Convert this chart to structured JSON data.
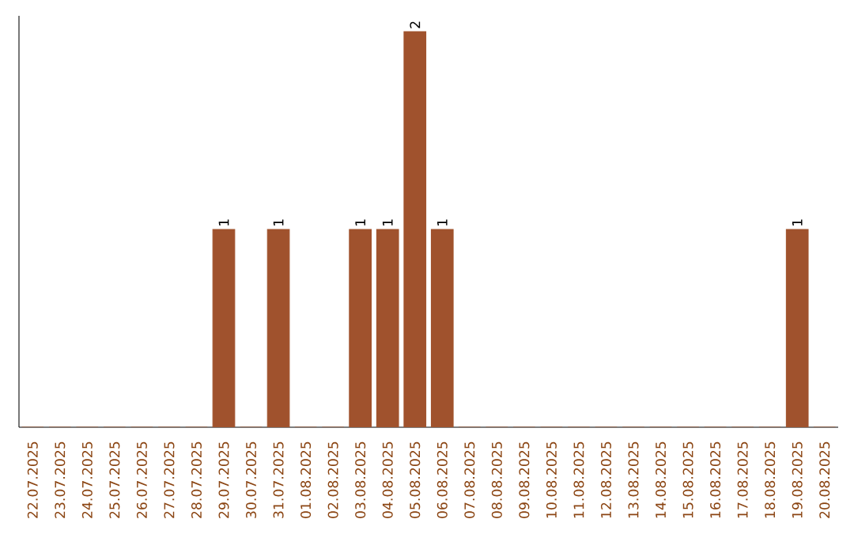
{
  "chart_data": {
    "type": "bar",
    "categories": [
      "22.07.2025",
      "23.07.2025",
      "24.07.2025",
      "25.07.2025",
      "26.07.2025",
      "27.07.2025",
      "28.07.2025",
      "29.07.2025",
      "30.07.2025",
      "31.07.2025",
      "01.08.2025",
      "02.08.2025",
      "03.08.2025",
      "04.08.2025",
      "05.08.2025",
      "06.08.2025",
      "07.08.2025",
      "08.08.2025",
      "09.08.2025",
      "10.08.2025",
      "11.08.2025",
      "12.08.2025",
      "13.08.2025",
      "14.08.2025",
      "15.08.2025",
      "16.08.2025",
      "17.08.2025",
      "18.08.2025",
      "19.08.2025",
      "20.08.2025"
    ],
    "values": [
      0,
      0,
      0,
      0,
      0,
      0,
      0,
      1,
      0,
      1,
      0,
      0,
      1,
      1,
      2,
      1,
      0,
      0,
      0,
      0,
      0,
      0,
      0,
      0,
      0,
      0,
      0,
      0,
      1,
      0
    ],
    "value_labels": [
      null,
      null,
      null,
      null,
      null,
      null,
      null,
      "1",
      null,
      "1",
      null,
      null,
      "1",
      "1",
      "2",
      "1",
      null,
      null,
      null,
      null,
      null,
      null,
      null,
      null,
      null,
      null,
      null,
      null,
      "1",
      null
    ],
    "color": "#a0522d",
    "tick_labels": "x"
  }
}
